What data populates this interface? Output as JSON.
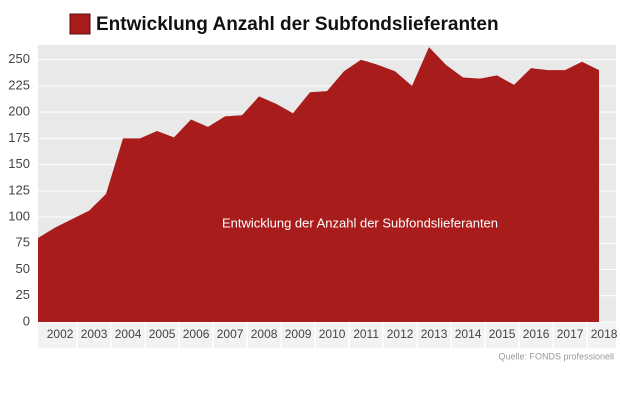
{
  "chart_data": {
    "type": "area",
    "title": "Entwicklung Anzahl der Subfondslieferanten",
    "annotation": "Entwicklung der Anzahl der Subfondslieferanten",
    "source": "Quelle: FONDS professionell",
    "color": "#a81c1c",
    "x": [
      2001.35,
      2001.85,
      2002.35,
      2002.85,
      2003.35,
      2003.85,
      2004.35,
      2004.85,
      2005.35,
      2005.85,
      2006.35,
      2006.85,
      2007.35,
      2007.85,
      2008.35,
      2008.85,
      2009.35,
      2009.85,
      2010.35,
      2010.85,
      2011.35,
      2011.85,
      2012.35,
      2012.85,
      2013.35,
      2013.85,
      2014.35,
      2014.85,
      2015.35,
      2015.85,
      2016.35,
      2016.85,
      2017.35,
      2017.85
    ],
    "values": [
      80,
      90,
      98,
      106,
      122,
      175,
      175,
      182,
      176,
      193,
      186,
      196,
      197,
      215,
      208,
      199,
      219,
      220,
      239,
      250,
      245,
      239,
      225,
      262,
      245,
      233,
      232,
      235,
      226,
      242,
      240,
      240,
      248,
      240
    ],
    "xlim": [
      2001.35,
      2018.35
    ],
    "xticks": [
      2002,
      2003,
      2004,
      2005,
      2006,
      2007,
      2008,
      2009,
      2010,
      2011,
      2012,
      2013,
      2014,
      2015,
      2016,
      2017,
      2018
    ],
    "ylim": [
      0,
      264
    ],
    "yticks": [
      0,
      25,
      50,
      75,
      100,
      125,
      150,
      175,
      200,
      225,
      250
    ],
    "grid": true
  }
}
